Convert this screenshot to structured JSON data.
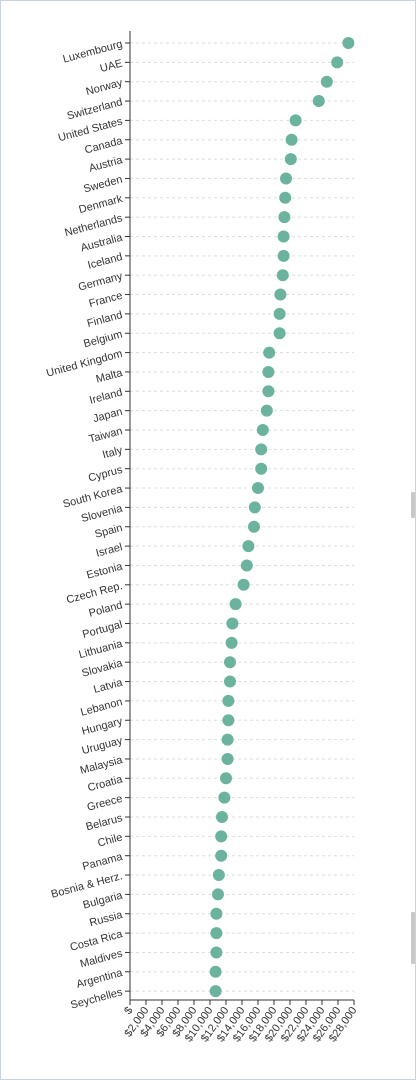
{
  "chart_data": {
    "type": "scatter",
    "title": "",
    "xlabel": "",
    "ylabel": "",
    "xlim": [
      0,
      28000
    ],
    "x_ticks": [
      0,
      2000,
      4000,
      6000,
      8000,
      10000,
      12000,
      14000,
      16000,
      18000,
      20000,
      22000,
      24000,
      26000,
      28000
    ],
    "x_tick_labels": [
      "$",
      "$2,000",
      "$4,000",
      "$6,000",
      "$8,000",
      "$10,000",
      "$12,000",
      "$14,000",
      "$16,000",
      "$18,000",
      "$20,000",
      "$22,000",
      "$24,000",
      "$26,000",
      "$28,000"
    ],
    "grid": "horizontal-dashed",
    "point_color": "#6bb39e",
    "categories": [
      "Luxembourg",
      "UAE",
      "Norway",
      "Switzerland",
      "United States",
      "Canada",
      "Austria",
      "Sweden",
      "Denmark",
      "Netherlands",
      "Australia",
      "Iceland",
      "Germany",
      "France",
      "Finland",
      "Belgium",
      "United Kingdom",
      "Malta",
      "Ireland",
      "Japan",
      "Taiwan",
      "Italy",
      "Cyprus",
      "South Korea",
      "Slovenia",
      "Spain",
      "Israel",
      "Estonia",
      "Czech Rep.",
      "Poland",
      "Portugal",
      "Lithuania",
      "Slovakia",
      "Latvia",
      "Lebanon",
      "Hungary",
      "Uruguay",
      "Malaysia",
      "Croatia",
      "Greece",
      "Belarus",
      "Chile",
      "Panama",
      "Bosnia & Herz.",
      "Bulgaria",
      "Russia",
      "Costa Rica",
      "Maldives",
      "Argentina",
      "Seychelles"
    ],
    "values": [
      27300,
      25900,
      24600,
      23600,
      20700,
      20200,
      20100,
      19500,
      19400,
      19300,
      19200,
      19200,
      19100,
      18800,
      18700,
      18700,
      17400,
      17300,
      17300,
      17100,
      16600,
      16400,
      16400,
      16000,
      15600,
      15500,
      14800,
      14600,
      14200,
      13200,
      12800,
      12700,
      12500,
      12500,
      12300,
      12300,
      12200,
      12200,
      12000,
      11800,
      11500,
      11400,
      11400,
      11100,
      11000,
      10800,
      10800,
      10800,
      10700,
      10700
    ]
  }
}
